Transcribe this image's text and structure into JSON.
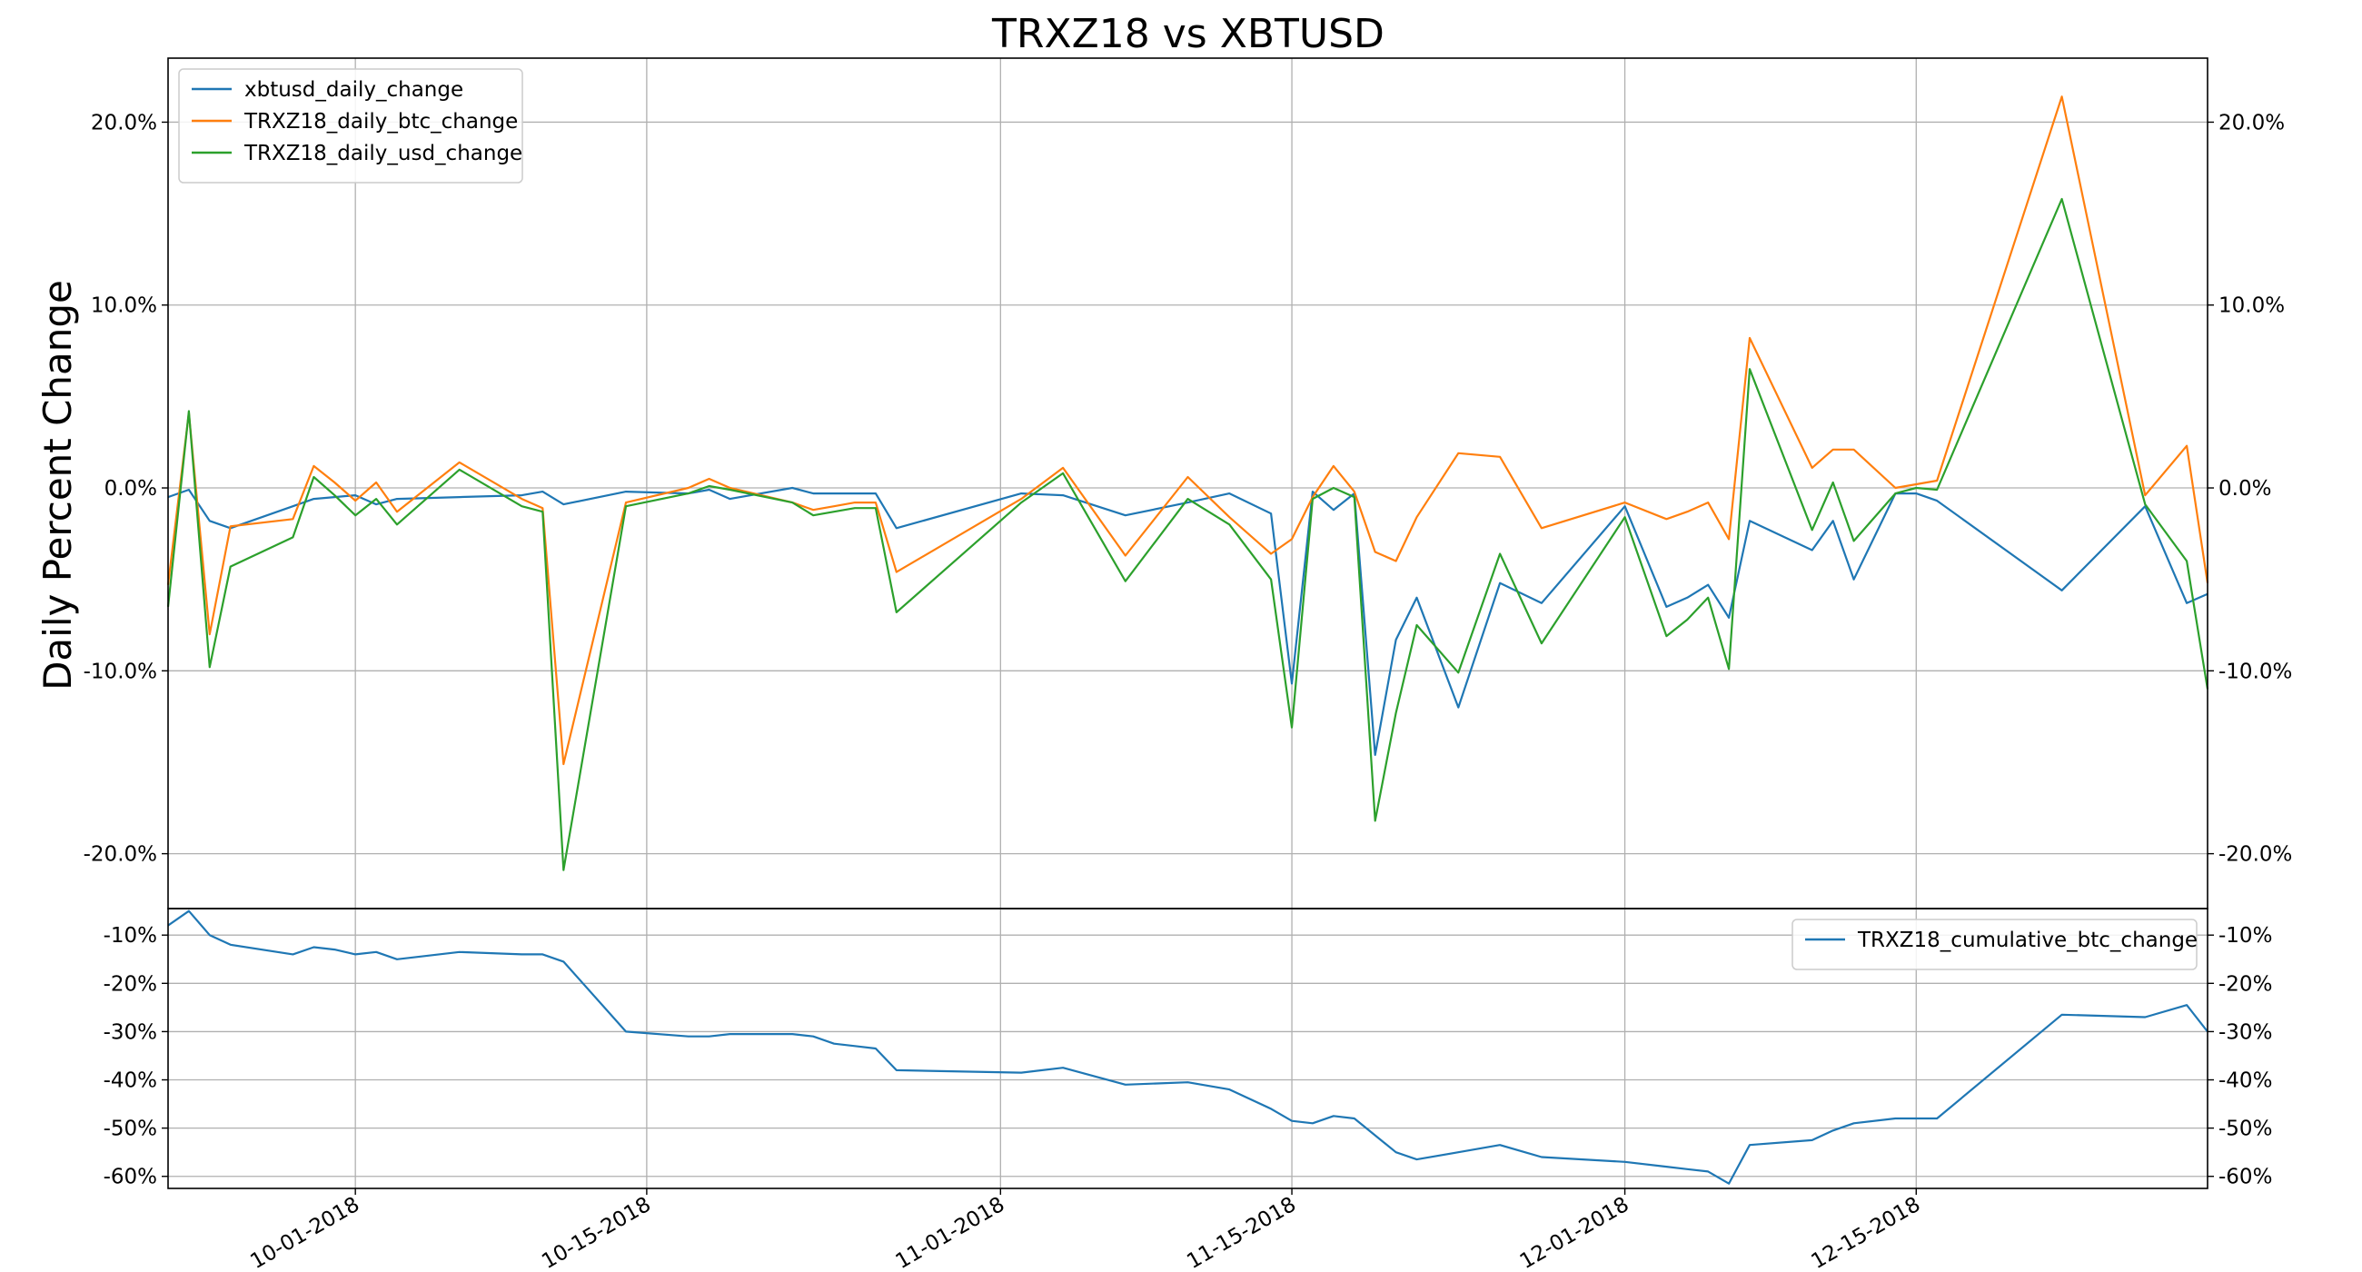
{
  "chart_data": [
    {
      "type": "line",
      "title": "TRXZ18 vs XBTUSD",
      "ylabel": "Daily Percent Change",
      "ylim": [
        -0.23,
        0.235
      ],
      "yticks": [
        -0.2,
        -0.1,
        0.0,
        0.1,
        0.2
      ],
      "ytick_labels": [
        "-20.0%",
        "-10.0%",
        "0.0%",
        "10.0%",
        "20.0%"
      ],
      "yticks_mirrored_right": true,
      "grid": true,
      "legend_position": "upper-left",
      "xlim": [
        "2018-09-22",
        "2018-12-29"
      ],
      "series": [
        {
          "name": "xbtusd_daily_change",
          "color": "#1f77b4",
          "x": [
            "2018-09-22",
            "2018-09-23",
            "2018-09-24",
            "2018-09-25",
            "2018-09-28",
            "2018-09-29",
            "2018-09-30",
            "2018-10-01",
            "2018-10-02",
            "2018-10-03",
            "2018-10-06",
            "2018-10-09",
            "2018-10-10",
            "2018-10-11",
            "2018-10-14",
            "2018-10-17",
            "2018-10-18",
            "2018-10-19",
            "2018-10-22",
            "2018-10-23",
            "2018-10-24",
            "2018-10-25",
            "2018-10-26",
            "2018-10-27",
            "2018-11-02",
            "2018-11-04",
            "2018-11-07",
            "2018-11-10",
            "2018-11-12",
            "2018-11-14",
            "2018-11-15",
            "2018-11-16",
            "2018-11-17",
            "2018-11-18",
            "2018-11-19",
            "2018-11-20",
            "2018-11-21",
            "2018-11-23",
            "2018-11-25",
            "2018-11-27",
            "2018-12-01",
            "2018-12-03",
            "2018-12-04",
            "2018-12-05",
            "2018-12-06",
            "2018-12-07",
            "2018-12-10",
            "2018-12-11",
            "2018-12-12",
            "2018-12-14",
            "2018-12-15",
            "2018-12-16",
            "2018-12-22",
            "2018-12-26",
            "2018-12-28",
            "2018-12-29"
          ],
          "values": [
            -0.005,
            -0.001,
            -0.018,
            -0.022,
            -0.01,
            -0.006,
            -0.005,
            -0.004,
            -0.009,
            -0.006,
            -0.005,
            -0.004,
            -0.002,
            -0.009,
            -0.002,
            -0.003,
            -0.001,
            -0.006,
            0.0,
            -0.003,
            -0.003,
            -0.003,
            -0.003,
            -0.022,
            -0.003,
            -0.004,
            -0.015,
            -0.008,
            -0.003,
            -0.014,
            -0.107,
            -0.002,
            -0.012,
            -0.003,
            -0.146,
            -0.083,
            -0.06,
            -0.12,
            -0.052,
            -0.063,
            -0.01,
            -0.065,
            -0.06,
            -0.053,
            -0.071,
            -0.018,
            -0.034,
            -0.018,
            -0.05,
            -0.003,
            -0.003,
            -0.007,
            -0.056,
            -0.01,
            -0.063,
            -0.058
          ]
        },
        {
          "name": "TRXZ18_daily_btc_change",
          "color": "#ff7f0e",
          "x": [
            "2018-09-22",
            "2018-09-23",
            "2018-09-24",
            "2018-09-25",
            "2018-09-28",
            "2018-09-29",
            "2018-09-30",
            "2018-10-01",
            "2018-10-02",
            "2018-10-03",
            "2018-10-06",
            "2018-10-09",
            "2018-10-10",
            "2018-10-11",
            "2018-10-14",
            "2018-10-17",
            "2018-10-18",
            "2018-10-19",
            "2018-10-22",
            "2018-10-23",
            "2018-10-24",
            "2018-10-25",
            "2018-10-26",
            "2018-10-27",
            "2018-11-02",
            "2018-11-04",
            "2018-11-07",
            "2018-11-10",
            "2018-11-12",
            "2018-11-14",
            "2018-11-15",
            "2018-11-16",
            "2018-11-17",
            "2018-11-18",
            "2018-11-19",
            "2018-11-20",
            "2018-11-21",
            "2018-11-23",
            "2018-11-25",
            "2018-11-27",
            "2018-12-01",
            "2018-12-03",
            "2018-12-04",
            "2018-12-05",
            "2018-12-06",
            "2018-12-07",
            "2018-12-10",
            "2018-12-11",
            "2018-12-12",
            "2018-12-14",
            "2018-12-15",
            "2018-12-16",
            "2018-12-22",
            "2018-12-26",
            "2018-12-28",
            "2018-12-29"
          ],
          "values": [
            -0.053,
            0.041,
            -0.08,
            -0.021,
            -0.017,
            0.012,
            0.003,
            -0.007,
            0.003,
            -0.013,
            0.014,
            -0.006,
            -0.011,
            -0.151,
            -0.008,
            0.0,
            0.005,
            0.0,
            -0.008,
            -0.012,
            -0.01,
            -0.008,
            -0.008,
            -0.046,
            -0.006,
            0.011,
            -0.037,
            0.006,
            -0.016,
            -0.036,
            -0.028,
            -0.005,
            0.012,
            -0.002,
            -0.035,
            -0.04,
            -0.016,
            0.019,
            0.017,
            -0.022,
            -0.008,
            -0.017,
            -0.013,
            -0.008,
            -0.028,
            0.082,
            0.011,
            0.021,
            0.021,
            0.0,
            0.002,
            0.004,
            0.214,
            -0.004,
            0.023,
            -0.052
          ]
        },
        {
          "name": "TRXZ18_daily_usd_change",
          "color": "#2ca02c",
          "x": [
            "2018-09-22",
            "2018-09-23",
            "2018-09-24",
            "2018-09-25",
            "2018-09-28",
            "2018-09-29",
            "2018-09-30",
            "2018-10-01",
            "2018-10-02",
            "2018-10-03",
            "2018-10-06",
            "2018-10-09",
            "2018-10-10",
            "2018-10-11",
            "2018-10-14",
            "2018-10-17",
            "2018-10-18",
            "2018-10-19",
            "2018-10-22",
            "2018-10-23",
            "2018-10-24",
            "2018-10-25",
            "2018-10-26",
            "2018-10-27",
            "2018-11-02",
            "2018-11-04",
            "2018-11-07",
            "2018-11-10",
            "2018-11-12",
            "2018-11-14",
            "2018-11-15",
            "2018-11-16",
            "2018-11-17",
            "2018-11-18",
            "2018-11-19",
            "2018-11-20",
            "2018-11-21",
            "2018-11-23",
            "2018-11-25",
            "2018-11-27",
            "2018-12-01",
            "2018-12-03",
            "2018-12-04",
            "2018-12-05",
            "2018-12-06",
            "2018-12-07",
            "2018-12-10",
            "2018-12-11",
            "2018-12-12",
            "2018-12-14",
            "2018-12-15",
            "2018-12-16",
            "2018-12-22",
            "2018-12-26",
            "2018-12-28",
            "2018-12-29"
          ],
          "values": [
            -0.065,
            0.042,
            -0.098,
            -0.043,
            -0.027,
            0.006,
            -0.004,
            -0.015,
            -0.006,
            -0.02,
            0.01,
            -0.01,
            -0.013,
            -0.209,
            -0.01,
            -0.003,
            0.001,
            -0.001,
            -0.008,
            -0.015,
            -0.013,
            -0.011,
            -0.011,
            -0.068,
            -0.008,
            0.008,
            -0.051,
            -0.006,
            -0.02,
            -0.05,
            -0.131,
            -0.006,
            0.0,
            -0.005,
            -0.182,
            -0.123,
            -0.075,
            -0.101,
            -0.036,
            -0.085,
            -0.016,
            -0.081,
            -0.072,
            -0.06,
            -0.099,
            0.065,
            -0.023,
            0.003,
            -0.029,
            -0.003,
            0.0,
            -0.001,
            0.158,
            -0.009,
            -0.04,
            -0.11
          ]
        }
      ]
    },
    {
      "type": "line",
      "ylim": [
        -0.625,
        -0.045
      ],
      "yticks": [
        -0.1,
        -0.2,
        -0.3,
        -0.4,
        -0.5,
        -0.6
      ],
      "ytick_labels": [
        "-10%",
        "-20%",
        "-30%",
        "-40%",
        "-50%",
        "-60%"
      ],
      "yticks_mirrored_right": true,
      "grid": true,
      "legend_position": "upper-right",
      "xlim": [
        "2018-09-22",
        "2018-12-29"
      ],
      "xtick_labels": [
        "10-01-2018",
        "10-15-2018",
        "11-01-2018",
        "11-15-2018",
        "12-01-2018",
        "12-15-2018"
      ],
      "xticks": [
        "2018-10-01",
        "2018-10-15",
        "2018-11-01",
        "2018-11-15",
        "2018-12-01",
        "2018-12-15"
      ],
      "series": [
        {
          "name": "TRXZ18_cumulative_btc_change",
          "color": "#1f77b4",
          "x": [
            "2018-09-22",
            "2018-09-23",
            "2018-09-24",
            "2018-09-25",
            "2018-09-28",
            "2018-09-29",
            "2018-09-30",
            "2018-10-01",
            "2018-10-02",
            "2018-10-03",
            "2018-10-06",
            "2018-10-09",
            "2018-10-10",
            "2018-10-11",
            "2018-10-14",
            "2018-10-17",
            "2018-10-18",
            "2018-10-19",
            "2018-10-22",
            "2018-10-23",
            "2018-10-24",
            "2018-10-25",
            "2018-10-26",
            "2018-10-27",
            "2018-11-02",
            "2018-11-04",
            "2018-11-07",
            "2018-11-10",
            "2018-11-12",
            "2018-11-14",
            "2018-11-15",
            "2018-11-16",
            "2018-11-17",
            "2018-11-18",
            "2018-11-19",
            "2018-11-20",
            "2018-11-21",
            "2018-11-23",
            "2018-11-25",
            "2018-11-27",
            "2018-12-01",
            "2018-12-03",
            "2018-12-04",
            "2018-12-05",
            "2018-12-06",
            "2018-12-07",
            "2018-12-10",
            "2018-12-11",
            "2018-12-12",
            "2018-12-14",
            "2018-12-15",
            "2018-12-16",
            "2018-12-22",
            "2018-12-26",
            "2018-12-28",
            "2018-12-29"
          ],
          "values": [
            -0.08,
            -0.05,
            -0.1,
            -0.12,
            -0.14,
            -0.125,
            -0.13,
            -0.14,
            -0.135,
            -0.15,
            -0.135,
            -0.14,
            -0.14,
            -0.155,
            -0.3,
            -0.31,
            -0.31,
            -0.305,
            -0.305,
            -0.31,
            -0.325,
            -0.33,
            -0.335,
            -0.38,
            -0.385,
            -0.375,
            -0.41,
            -0.405,
            -0.42,
            -0.46,
            -0.485,
            -0.49,
            -0.475,
            -0.48,
            -0.515,
            -0.55,
            -0.565,
            -0.55,
            -0.535,
            -0.56,
            -0.57,
            -0.58,
            -0.585,
            -0.59,
            -0.615,
            -0.535,
            -0.525,
            -0.505,
            -0.49,
            -0.48,
            -0.48,
            -0.48,
            -0.265,
            -0.27,
            -0.245,
            -0.3
          ]
        }
      ]
    }
  ]
}
